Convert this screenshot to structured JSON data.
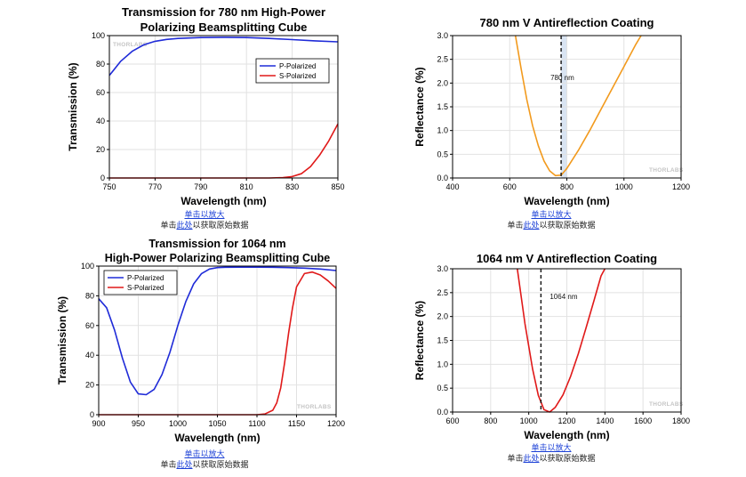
{
  "links": [
    {
      "zoom_label": "单击以放大",
      "data_prefix": "单击",
      "data_link": "此处",
      "data_suffix": "以获取原始数据"
    },
    {
      "zoom_label": "单击以放大",
      "data_prefix": "单击",
      "data_link": "此处",
      "data_suffix": "以获取原始数据"
    },
    {
      "zoom_label": "单击以放大",
      "data_prefix": "单击",
      "data_link": "此处",
      "data_suffix": "以获取原始数据"
    },
    {
      "zoom_label": "单击以放大",
      "data_prefix": "单击",
      "data_link": "此处",
      "data_suffix": "以获取原始数据"
    }
  ],
  "colors": {
    "blue": "#1f2bd8",
    "red": "#e01919",
    "orange": "#f29a1d",
    "band": "#d9e4f2",
    "grid": "#e2e2e2"
  },
  "chart_data": [
    {
      "type": "line",
      "title": [
        "Transmission for 780 nm High-Power",
        "Polarizing Beamsplitting Cube"
      ],
      "xlabel": "Wavelength (nm)",
      "ylabel": "Transmission (%)",
      "xlim": [
        750,
        850
      ],
      "ylim": [
        0,
        100
      ],
      "xticks": [
        750,
        770,
        790,
        810,
        830,
        850
      ],
      "yticks": [
        0,
        20,
        40,
        60,
        80,
        100
      ],
      "grid": true,
      "watermark": "THORLABS",
      "legend": {
        "placement": "top-right",
        "entries": [
          "P-Polarized",
          "S-Polarized"
        ]
      },
      "series": [
        {
          "name": "P-Polarized",
          "color": "blue",
          "x": [
            750,
            755,
            760,
            765,
            770,
            775,
            780,
            790,
            800,
            810,
            820,
            830,
            840,
            850
          ],
          "y": [
            72,
            82,
            89,
            93.5,
            96,
            97.3,
            98,
            98.6,
            98.8,
            98.6,
            98,
            97.2,
            96.3,
            95.6
          ]
        },
        {
          "name": "S-Polarized",
          "color": "red",
          "x": [
            750,
            790,
            820,
            826,
            830,
            834,
            838,
            842,
            846,
            850
          ],
          "y": [
            0,
            0,
            0,
            0.3,
            1,
            3,
            8,
            16,
            26,
            38
          ]
        }
      ]
    },
    {
      "type": "line",
      "title": [
        "780 nm V Antireflection Coating"
      ],
      "xlabel": "Wavelength (nm)",
      "ylabel": "Reflectance (%)",
      "xlim": [
        400,
        1200
      ],
      "ylim": [
        0,
        3
      ],
      "xticks": [
        400,
        600,
        800,
        1000,
        1200
      ],
      "yticks": [
        0.0,
        0.5,
        1.0,
        1.5,
        2.0,
        2.5,
        3.0
      ],
      "yticklabels": [
        "0.0",
        "0.5",
        "1.0",
        "1.5",
        "2.0",
        "2.5",
        "3.0"
      ],
      "grid": true,
      "watermark": "THORLABS",
      "band": {
        "x": [
          780,
          800
        ]
      },
      "vline": {
        "x": 780,
        "label": "780 nm"
      },
      "series": [
        {
          "color": "orange",
          "x": [
            620,
            640,
            660,
            680,
            700,
            720,
            740,
            760,
            780,
            800,
            840,
            880,
            920,
            960,
            1000,
            1040,
            1060
          ],
          "y": [
            3.0,
            2.3,
            1.65,
            1.1,
            0.68,
            0.36,
            0.15,
            0.05,
            0.06,
            0.2,
            0.58,
            1.0,
            1.45,
            1.9,
            2.35,
            2.8,
            3.0
          ]
        }
      ]
    },
    {
      "type": "line",
      "title": [
        "Transmission for 1064 nm",
        "High-Power Polarizing Beamsplitting Cube"
      ],
      "xlabel": "Wavelength (nm)",
      "ylabel": "Transmission (%)",
      "xlim": [
        900,
        1200
      ],
      "ylim": [
        0,
        100
      ],
      "xticks": [
        900,
        950,
        1000,
        1050,
        1100,
        1150,
        1200
      ],
      "yticks": [
        0,
        20,
        40,
        60,
        80,
        100
      ],
      "grid": true,
      "watermark": "THORLABS",
      "legend": {
        "placement": "top-left",
        "entries": [
          "P-Polarized",
          "S-Polarized"
        ]
      },
      "series": [
        {
          "name": "P-Polarized",
          "color": "blue",
          "x": [
            900,
            910,
            920,
            930,
            940,
            950,
            960,
            970,
            980,
            990,
            1000,
            1010,
            1020,
            1030,
            1040,
            1050,
            1060,
            1080,
            1100,
            1120,
            1140,
            1160,
            1180,
            1200
          ],
          "y": [
            78,
            72,
            57,
            38,
            22,
            14,
            13.5,
            17,
            27,
            42,
            60,
            76,
            88,
            95,
            98,
            99,
            99.2,
            99.3,
            99.3,
            99.2,
            99,
            98.6,
            98,
            97
          ]
        },
        {
          "name": "S-Polarized",
          "color": "red",
          "x": [
            900,
            1080,
            1100,
            1110,
            1120,
            1125,
            1130,
            1135,
            1140,
            1145,
            1150,
            1160,
            1170,
            1180,
            1190,
            1200
          ],
          "y": [
            0,
            0,
            0,
            0.5,
            3,
            8,
            18,
            35,
            55,
            72,
            86,
            95,
            96,
            94,
            90,
            85
          ]
        }
      ]
    },
    {
      "type": "line",
      "title": [
        "1064 nm V Antireflection Coating"
      ],
      "xlabel": "Wavelength (nm)",
      "ylabel": "Reflectance (%)",
      "xlim": [
        600,
        1800
      ],
      "ylim": [
        0,
        3
      ],
      "xticks": [
        600,
        800,
        1000,
        1200,
        1400,
        1600,
        1800
      ],
      "yticks": [
        0.0,
        0.5,
        1.0,
        1.5,
        2.0,
        2.5,
        3.0
      ],
      "yticklabels": [
        "0.0",
        "0.5",
        "1.0",
        "1.5",
        "2.0",
        "2.5",
        "3.0"
      ],
      "grid": true,
      "watermark": "THORLABS",
      "vline": {
        "x": 1064,
        "label": "1064 nm"
      },
      "series": [
        {
          "color": "red",
          "x": [
            940,
            980,
            1020,
            1050,
            1080,
            1110,
            1140,
            1180,
            1220,
            1260,
            1300,
            1340,
            1380,
            1400
          ],
          "y": [
            3.0,
            1.85,
            0.9,
            0.35,
            0.05,
            0.0,
            0.1,
            0.36,
            0.75,
            1.22,
            1.75,
            2.3,
            2.85,
            3.0
          ]
        }
      ]
    }
  ]
}
